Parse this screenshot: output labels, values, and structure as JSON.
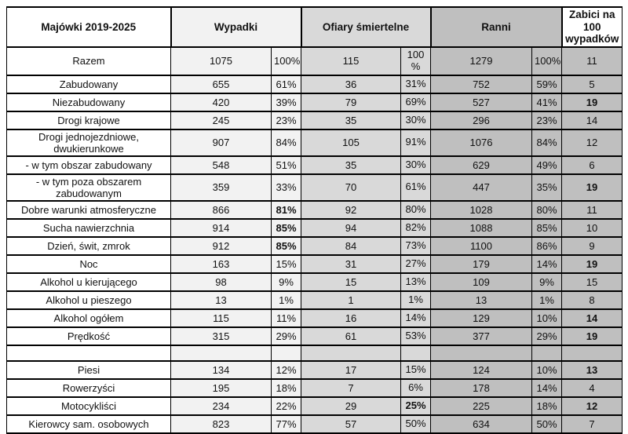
{
  "table": {
    "header": {
      "label": "Majówki 2019-2025",
      "wypadki": "Wypadki",
      "ofiary": "Ofiary śmiertelne",
      "ranni": "Ranni",
      "zabici": "Zabici na 100 wypadków"
    }
  },
  "colors": {
    "wypadki_bg": "#f2f2f2",
    "ofiary_bg": "#d9d9d9",
    "ranni_bg": "#bfbfbf",
    "zabici_bg": "#bfbfbf",
    "label_bg": "#ffffff",
    "border": "#000000"
  },
  "rows": [
    {
      "label": "Razem",
      "first": true,
      "cells": [
        {
          "v": "1075"
        },
        {
          "v": "100%"
        },
        {
          "v": "115"
        },
        {
          "v": "100 %"
        },
        {
          "v": "1279"
        },
        {
          "v": "100%"
        },
        {
          "v": "11"
        }
      ]
    },
    {
      "label": "Zabudowany",
      "cells": [
        {
          "v": "655"
        },
        {
          "v": "61%"
        },
        {
          "v": "36"
        },
        {
          "v": "31%"
        },
        {
          "v": "752"
        },
        {
          "v": "59%"
        },
        {
          "v": "5"
        }
      ]
    },
    {
      "label": "Niezabudowany",
      "cells": [
        {
          "v": "420"
        },
        {
          "v": "39%"
        },
        {
          "v": "79"
        },
        {
          "v": "69%"
        },
        {
          "v": "527"
        },
        {
          "v": "41%"
        },
        {
          "v": "19",
          "b": true
        }
      ]
    },
    {
      "label": "Drogi krajowe",
      "cells": [
        {
          "v": "245"
        },
        {
          "v": "23%"
        },
        {
          "v": "35"
        },
        {
          "v": "30%"
        },
        {
          "v": "296"
        },
        {
          "v": "23%"
        },
        {
          "v": "14"
        }
      ]
    },
    {
      "label": "Drogi jednojezdniowe, dwukierunkowe",
      "cells": [
        {
          "v": "907"
        },
        {
          "v": "84%"
        },
        {
          "v": "105"
        },
        {
          "v": "91%"
        },
        {
          "v": "1076"
        },
        {
          "v": "84%"
        },
        {
          "v": "12"
        }
      ]
    },
    {
      "label": "- w tym obszar zabudowany",
      "cells": [
        {
          "v": "548"
        },
        {
          "v": "51%"
        },
        {
          "v": "35"
        },
        {
          "v": "30%"
        },
        {
          "v": "629"
        },
        {
          "v": "49%"
        },
        {
          "v": "6"
        }
      ]
    },
    {
      "label": "- w tym poza obszarem zabudowanym",
      "cells": [
        {
          "v": "359"
        },
        {
          "v": "33%"
        },
        {
          "v": "70"
        },
        {
          "v": "61%"
        },
        {
          "v": "447"
        },
        {
          "v": "35%"
        },
        {
          "v": "19",
          "b": true
        }
      ]
    },
    {
      "label": "Dobre warunki atmosferyczne",
      "cells": [
        {
          "v": "866"
        },
        {
          "v": "81%",
          "b": true
        },
        {
          "v": "92"
        },
        {
          "v": "80%"
        },
        {
          "v": "1028"
        },
        {
          "v": "80%"
        },
        {
          "v": "11"
        }
      ]
    },
    {
      "label": "Sucha nawierzchnia",
      "cells": [
        {
          "v": "914"
        },
        {
          "v": "85%",
          "b": true
        },
        {
          "v": "94"
        },
        {
          "v": "82%"
        },
        {
          "v": "1088"
        },
        {
          "v": "85%"
        },
        {
          "v": "10"
        }
      ]
    },
    {
      "label": "Dzień, świt, zmrok",
      "cells": [
        {
          "v": "912"
        },
        {
          "v": "85%",
          "b": true
        },
        {
          "v": "84"
        },
        {
          "v": "73%"
        },
        {
          "v": "1100"
        },
        {
          "v": "86%"
        },
        {
          "v": "9"
        }
      ]
    },
    {
      "label": "Noc",
      "cells": [
        {
          "v": "163"
        },
        {
          "v": "15%"
        },
        {
          "v": "31"
        },
        {
          "v": "27%"
        },
        {
          "v": "179"
        },
        {
          "v": "14%"
        },
        {
          "v": "19",
          "b": true
        }
      ]
    },
    {
      "label": "Alkohol u kierującego",
      "cells": [
        {
          "v": "98"
        },
        {
          "v": "9%"
        },
        {
          "v": "15"
        },
        {
          "v": "13%"
        },
        {
          "v": "109"
        },
        {
          "v": "9%"
        },
        {
          "v": "15"
        }
      ]
    },
    {
      "label": "Alkohol u pieszego",
      "cells": [
        {
          "v": "13"
        },
        {
          "v": "1%"
        },
        {
          "v": "1"
        },
        {
          "v": "1%"
        },
        {
          "v": "13"
        },
        {
          "v": "1%"
        },
        {
          "v": "8"
        }
      ]
    },
    {
      "label": "Alkohol ogółem",
      "cells": [
        {
          "v": "115"
        },
        {
          "v": "11%"
        },
        {
          "v": "16"
        },
        {
          "v": "14%"
        },
        {
          "v": "129"
        },
        {
          "v": "10%"
        },
        {
          "v": "14",
          "b": true
        }
      ]
    },
    {
      "label": "Prędkość",
      "cells": [
        {
          "v": "315"
        },
        {
          "v": "29%"
        },
        {
          "v": "61"
        },
        {
          "v": "53%"
        },
        {
          "v": "377"
        },
        {
          "v": "29%"
        },
        {
          "v": "19",
          "b": true
        }
      ]
    },
    {
      "label": "",
      "empty": true,
      "cells": [
        {
          "v": ""
        },
        {
          "v": ""
        },
        {
          "v": ""
        },
        {
          "v": ""
        },
        {
          "v": ""
        },
        {
          "v": ""
        },
        {
          "v": ""
        }
      ]
    },
    {
      "label": "Piesi",
      "cells": [
        {
          "v": "134"
        },
        {
          "v": "12%"
        },
        {
          "v": "17"
        },
        {
          "v": "15%"
        },
        {
          "v": "124"
        },
        {
          "v": "10%"
        },
        {
          "v": "13",
          "b": true
        }
      ]
    },
    {
      "label": "Rowerzyści",
      "cells": [
        {
          "v": "195"
        },
        {
          "v": "18%"
        },
        {
          "v": "7"
        },
        {
          "v": "6%"
        },
        {
          "v": "178"
        },
        {
          "v": "14%"
        },
        {
          "v": "4"
        }
      ]
    },
    {
      "label": "Motocykliści",
      "cells": [
        {
          "v": "234"
        },
        {
          "v": "22%"
        },
        {
          "v": "29"
        },
        {
          "v": "25%",
          "b": true
        },
        {
          "v": "225"
        },
        {
          "v": "18%"
        },
        {
          "v": "12",
          "b": true
        }
      ]
    },
    {
      "label": "Kierowcy sam. osobowych",
      "cells": [
        {
          "v": "823"
        },
        {
          "v": "77%"
        },
        {
          "v": "57"
        },
        {
          "v": "50%"
        },
        {
          "v": "634"
        },
        {
          "v": "50%"
        },
        {
          "v": "7"
        }
      ]
    }
  ]
}
